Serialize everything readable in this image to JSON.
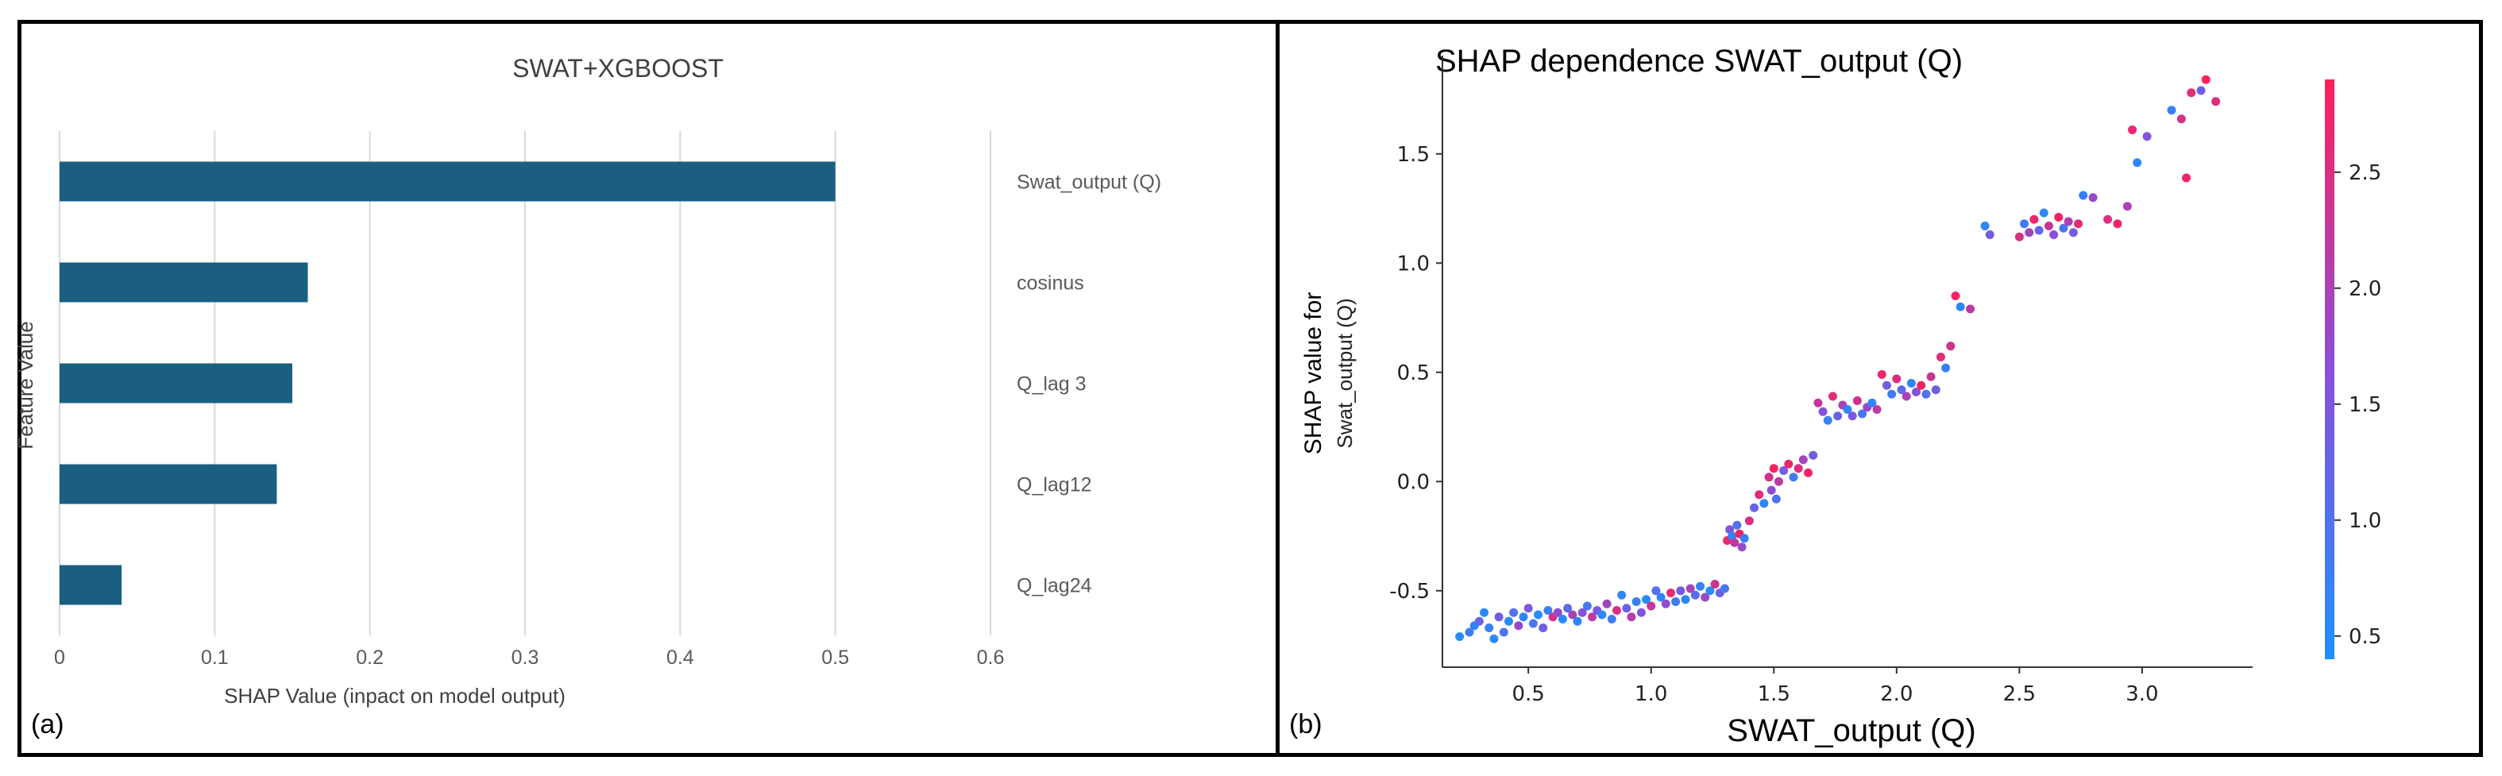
{
  "chart_data": [
    {
      "type": "bar",
      "panel_label": "(a)",
      "title": "SWAT+XGBOOST",
      "xlabel": "SHAP Value (inpact on model output)",
      "ylabel": "Feature Value",
      "categories": [
        "Swat_output (Q)",
        "cosinus",
        "Q_lag 3",
        "Q_lag12",
        "Q_lag24"
      ],
      "values": [
        0.5,
        0.16,
        0.15,
        0.14,
        0.04
      ],
      "xlim": [
        0,
        0.6
      ],
      "xticks": [
        "0",
        "0.1",
        "0.2",
        "0.3",
        "0.4",
        "0.5",
        "0.6"
      ],
      "orientation": "horizontal",
      "grid": "vertical",
      "bar_color": "#1a5f82"
    },
    {
      "type": "scatter",
      "panel_label": "(b)",
      "title": "SHAP dependence SWAT_output (Q)",
      "xlabel": "SWAT_output (Q)",
      "ylabel": [
        "SHAP value for",
        "Swat_output (Q)"
      ],
      "xlim": [
        0.15,
        3.45
      ],
      "ylim": [
        -0.85,
        1.95
      ],
      "xticks": [
        "0.5",
        "1.0",
        "1.5",
        "2.0",
        "2.5",
        "3.0"
      ],
      "yticks": [
        "-0.5",
        "0.0",
        "0.5",
        "1.0",
        "1.5"
      ],
      "colorbar": {
        "min": 0.4,
        "max": 2.9,
        "ticks": [
          "0.5",
          "1.0",
          "1.5",
          "2.0",
          "2.5"
        ],
        "colors": [
          "#1e90ff",
          "#8a4fd8",
          "#ff1f5a"
        ]
      },
      "points": [
        [
          0.22,
          -0.71,
          0.5
        ],
        [
          0.26,
          -0.69,
          0.8
        ],
        [
          0.28,
          -0.66,
          0.6
        ],
        [
          0.3,
          -0.64,
          1.2
        ],
        [
          0.32,
          -0.6,
          0.5
        ],
        [
          0.34,
          -0.67,
          0.7
        ],
        [
          0.36,
          -0.72,
          0.5
        ],
        [
          0.38,
          -0.62,
          1.4
        ],
        [
          0.4,
          -0.69,
          0.9
        ],
        [
          0.42,
          -0.64,
          0.5
        ],
        [
          0.44,
          -0.6,
          1.0
        ],
        [
          0.46,
          -0.66,
          1.8
        ],
        [
          0.48,
          -0.62,
          0.6
        ],
        [
          0.5,
          -0.58,
          1.5
        ],
        [
          0.52,
          -0.65,
          0.9
        ],
        [
          0.54,
          -0.61,
          0.5
        ],
        [
          0.56,
          -0.67,
          1.3
        ],
        [
          0.58,
          -0.59,
          0.7
        ],
        [
          0.6,
          -0.62,
          2.4
        ],
        [
          0.62,
          -0.6,
          1.7
        ],
        [
          0.64,
          -0.63,
          0.5
        ],
        [
          0.66,
          -0.58,
          1.1
        ],
        [
          0.68,
          -0.61,
          2.0
        ],
        [
          0.7,
          -0.64,
          0.6
        ],
        [
          0.72,
          -0.6,
          1.6
        ],
        [
          0.74,
          -0.57,
          0.9
        ],
        [
          0.76,
          -0.62,
          2.2
        ],
        [
          0.78,
          -0.59,
          1.4
        ],
        [
          0.8,
          -0.61,
          0.6
        ],
        [
          0.82,
          -0.56,
          1.9
        ],
        [
          0.84,
          -0.63,
          0.8
        ],
        [
          0.86,
          -0.59,
          2.5
        ],
        [
          0.88,
          -0.52,
          0.6
        ],
        [
          0.9,
          -0.58,
          1.3
        ],
        [
          0.92,
          -0.62,
          2.1
        ],
        [
          0.94,
          -0.55,
          0.7
        ],
        [
          0.96,
          -0.6,
          1.5
        ],
        [
          0.98,
          -0.54,
          0.5
        ],
        [
          1.0,
          -0.57,
          2.3
        ],
        [
          1.02,
          -0.5,
          1.0
        ],
        [
          1.04,
          -0.53,
          0.6
        ],
        [
          1.06,
          -0.56,
          1.7
        ],
        [
          1.08,
          -0.51,
          2.6
        ],
        [
          1.1,
          -0.55,
          0.8
        ],
        [
          1.12,
          -0.5,
          1.4
        ],
        [
          1.14,
          -0.54,
          0.6
        ],
        [
          1.16,
          -0.49,
          2.0
        ],
        [
          1.18,
          -0.52,
          1.1
        ],
        [
          1.2,
          -0.48,
          0.7
        ],
        [
          1.22,
          -0.53,
          1.8
        ],
        [
          1.24,
          -0.5,
          0.5
        ],
        [
          1.26,
          -0.47,
          2.4
        ],
        [
          1.28,
          -0.51,
          1.3
        ],
        [
          1.3,
          -0.49,
          0.9
        ],
        [
          1.31,
          -0.27,
          2.7
        ],
        [
          1.32,
          -0.22,
          1.5
        ],
        [
          1.33,
          -0.25,
          0.6
        ],
        [
          1.34,
          -0.28,
          2.2
        ],
        [
          1.35,
          -0.2,
          1.0
        ],
        [
          1.36,
          -0.24,
          2.8
        ],
        [
          1.37,
          -0.3,
          1.8
        ],
        [
          1.38,
          -0.26,
          0.7
        ],
        [
          1.4,
          -0.18,
          2.5
        ],
        [
          1.42,
          -0.12,
          1.2
        ],
        [
          1.44,
          -0.06,
          2.6
        ],
        [
          1.46,
          -0.1,
          0.6
        ],
        [
          1.48,
          0.02,
          2.4
        ],
        [
          1.49,
          -0.04,
          1.7
        ],
        [
          1.5,
          0.06,
          2.8
        ],
        [
          1.51,
          -0.08,
          1.0
        ],
        [
          1.52,
          0.0,
          2.2
        ],
        [
          1.54,
          0.05,
          1.4
        ],
        [
          1.56,
          0.08,
          2.7
        ],
        [
          1.58,
          0.02,
          0.8
        ],
        [
          1.6,
          0.06,
          2.5
        ],
        [
          1.62,
          0.1,
          1.9
        ],
        [
          1.64,
          0.04,
          2.8
        ],
        [
          1.66,
          0.12,
          1.3
        ],
        [
          1.68,
          0.36,
          2.3
        ],
        [
          1.7,
          0.32,
          1.6
        ],
        [
          1.72,
          0.28,
          0.7
        ],
        [
          1.74,
          0.39,
          2.6
        ],
        [
          1.76,
          0.3,
          1.2
        ],
        [
          1.78,
          0.35,
          2.0
        ],
        [
          1.8,
          0.33,
          0.6
        ],
        [
          1.82,
          0.3,
          1.5
        ],
        [
          1.84,
          0.37,
          2.4
        ],
        [
          1.86,
          0.31,
          0.9
        ],
        [
          1.88,
          0.34,
          1.8
        ],
        [
          1.9,
          0.36,
          0.6
        ],
        [
          1.92,
          0.33,
          2.2
        ],
        [
          1.94,
          0.49,
          2.7
        ],
        [
          1.96,
          0.44,
          1.4
        ],
        [
          1.98,
          0.4,
          0.8
        ],
        [
          2.0,
          0.47,
          2.5
        ],
        [
          2.02,
          0.42,
          1.1
        ],
        [
          2.04,
          0.39,
          2.0
        ],
        [
          2.06,
          0.45,
          0.6
        ],
        [
          2.08,
          0.41,
          1.6
        ],
        [
          2.1,
          0.44,
          2.8
        ],
        [
          2.12,
          0.4,
          1.0
        ],
        [
          2.14,
          0.48,
          2.3
        ],
        [
          2.16,
          0.42,
          1.3
        ],
        [
          2.18,
          0.57,
          2.6
        ],
        [
          2.2,
          0.52,
          0.7
        ],
        [
          2.22,
          0.62,
          2.4
        ],
        [
          2.24,
          0.85,
          2.8
        ],
        [
          2.26,
          0.8,
          0.6
        ],
        [
          2.3,
          0.79,
          2.2
        ],
        [
          2.36,
          1.17,
          0.6
        ],
        [
          2.38,
          1.13,
          1.4
        ],
        [
          2.5,
          1.12,
          2.5
        ],
        [
          2.52,
          1.18,
          0.8
        ],
        [
          2.54,
          1.14,
          1.9
        ],
        [
          2.56,
          1.2,
          2.7
        ],
        [
          2.58,
          1.15,
          1.2
        ],
        [
          2.6,
          1.23,
          0.6
        ],
        [
          2.62,
          1.17,
          2.3
        ],
        [
          2.64,
          1.13,
          1.6
        ],
        [
          2.66,
          1.21,
          2.8
        ],
        [
          2.68,
          1.16,
          0.9
        ],
        [
          2.7,
          1.19,
          2.1
        ],
        [
          2.72,
          1.14,
          1.4
        ],
        [
          2.74,
          1.18,
          2.6
        ],
        [
          2.76,
          1.31,
          0.7
        ],
        [
          2.8,
          1.3,
          1.8
        ],
        [
          2.86,
          1.2,
          2.5
        ],
        [
          2.9,
          1.18,
          2.8
        ],
        [
          2.94,
          1.26,
          2.0
        ],
        [
          2.96,
          1.61,
          2.7
        ],
        [
          2.98,
          1.46,
          0.6
        ],
        [
          3.02,
          1.58,
          1.5
        ],
        [
          3.12,
          1.7,
          0.7
        ],
        [
          3.16,
          1.66,
          2.4
        ],
        [
          3.18,
          1.39,
          2.8
        ],
        [
          3.2,
          1.78,
          2.6
        ],
        [
          3.24,
          1.79,
          1.3
        ],
        [
          3.26,
          1.84,
          2.9
        ],
        [
          3.3,
          1.74,
          2.5
        ]
      ]
    }
  ]
}
